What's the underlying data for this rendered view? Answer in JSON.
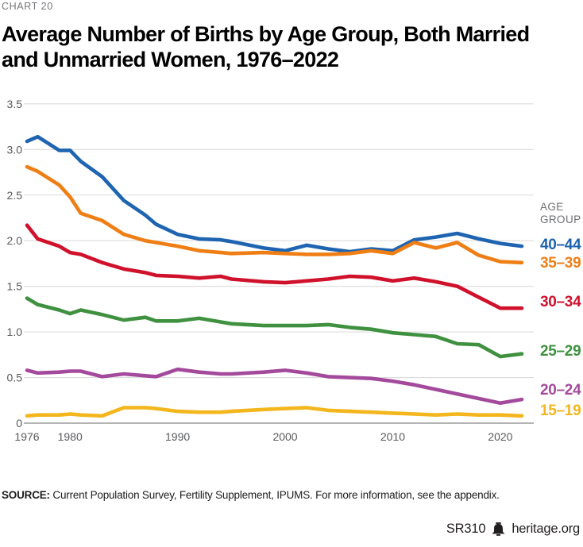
{
  "page": {
    "kicker": "CHART 20",
    "title_line1": "Average Number of Births by Age Group, Both Married",
    "title_line2": "and Unmarried Women, 1976–2022",
    "source_label": "SOURCE:",
    "source_text": " Current Population Survey, Fertility Supplement, IPUMS. For more information, see the appendix.",
    "report_id": "SR310",
    "site": "heritage.org",
    "logo_icon": "liberty-bell-icon"
  },
  "chart_data": {
    "type": "line",
    "title": "Average Number of Births by Age Group, Both Married and Unmarried Women, 1976–2022",
    "legend_title": "AGE GROUP",
    "legend_position": "right",
    "grid": "horizontal-only",
    "xlabel": "",
    "ylabel": "",
    "xlim": [
      1976,
      2022
    ],
    "ylim": [
      0,
      3.5
    ],
    "x_ticks": [
      1976,
      1980,
      1990,
      2000,
      2010,
      2020
    ],
    "y_ticks": [
      "0",
      "0.5",
      "1.0",
      "1.5",
      "2.0",
      "2.5",
      "3.0",
      "3.5"
    ],
    "colors": {
      "gridline": "#dcdcdc",
      "zeroline": "#9a9a9c",
      "axis_text": "#58595b"
    },
    "x": [
      1976,
      1977,
      1979,
      1980,
      1981,
      1983,
      1985,
      1987,
      1988,
      1990,
      1992,
      1994,
      1995,
      1998,
      2000,
      2002,
      2004,
      2006,
      2008,
      2010,
      2012,
      2014,
      2016,
      2018,
      2020,
      2022
    ],
    "series": [
      {
        "name": "40–44",
        "color": "#1e64b0",
        "values": [
          3.09,
          3.14,
          2.99,
          2.99,
          2.87,
          2.7,
          2.44,
          2.28,
          2.18,
          2.07,
          2.02,
          2.01,
          1.99,
          1.92,
          1.89,
          1.95,
          1.91,
          1.88,
          1.91,
          1.89,
          2.01,
          2.04,
          2.08,
          2.02,
          1.97,
          1.94
        ]
      },
      {
        "name": "35–39",
        "color": "#ef7e14",
        "values": [
          2.81,
          2.76,
          2.61,
          2.48,
          2.3,
          2.22,
          2.07,
          2.0,
          1.98,
          1.94,
          1.89,
          1.87,
          1.86,
          1.87,
          1.86,
          1.85,
          1.85,
          1.86,
          1.89,
          1.86,
          1.98,
          1.92,
          1.98,
          1.84,
          1.77,
          1.76
        ]
      },
      {
        "name": "30–34",
        "color": "#d0112b",
        "values": [
          2.17,
          2.02,
          1.94,
          1.87,
          1.85,
          1.76,
          1.69,
          1.65,
          1.62,
          1.61,
          1.59,
          1.61,
          1.58,
          1.55,
          1.54,
          1.56,
          1.58,
          1.61,
          1.6,
          1.56,
          1.59,
          1.55,
          1.5,
          1.38,
          1.26,
          1.26
        ]
      },
      {
        "name": "25–29",
        "color": "#3f9140",
        "values": [
          1.37,
          1.3,
          1.24,
          1.2,
          1.24,
          1.19,
          1.13,
          1.16,
          1.12,
          1.12,
          1.15,
          1.11,
          1.09,
          1.07,
          1.07,
          1.07,
          1.08,
          1.05,
          1.03,
          0.99,
          0.97,
          0.95,
          0.87,
          0.86,
          0.73,
          0.76
        ]
      },
      {
        "name": "20–24",
        "color": "#a44a9c",
        "values": [
          0.58,
          0.55,
          0.56,
          0.57,
          0.57,
          0.51,
          0.54,
          0.52,
          0.51,
          0.59,
          0.56,
          0.54,
          0.54,
          0.56,
          0.58,
          0.55,
          0.51,
          0.5,
          0.49,
          0.46,
          0.42,
          0.37,
          0.32,
          0.27,
          0.22,
          0.26
        ]
      },
      {
        "name": "15–19",
        "color": "#f3b71d",
        "values": [
          0.08,
          0.09,
          0.09,
          0.1,
          0.09,
          0.08,
          0.17,
          0.17,
          0.16,
          0.13,
          0.12,
          0.12,
          0.13,
          0.15,
          0.16,
          0.17,
          0.14,
          0.13,
          0.12,
          0.11,
          0.1,
          0.09,
          0.1,
          0.09,
          0.09,
          0.08
        ]
      }
    ]
  }
}
